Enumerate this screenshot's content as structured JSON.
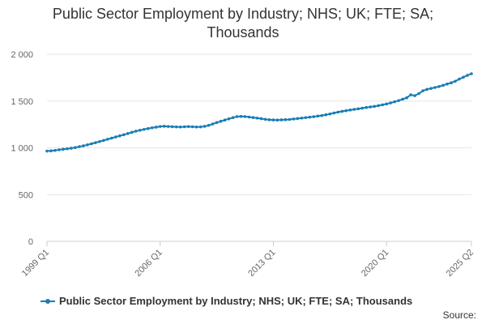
{
  "colors": {
    "series": "#1a7db4",
    "grid": "#e6e6e6",
    "axis": "#cccccc",
    "text": "#333333",
    "ticktext": "#666666"
  },
  "chart_data": {
    "type": "line",
    "title_lines": [
      "Public Sector Employment by Industry; NHS; UK; FTE; SA;",
      "Thousands"
    ],
    "ylim": [
      0,
      2000
    ],
    "yticks": [
      0,
      500,
      1000,
      1500,
      2000
    ],
    "ytick_labels": [
      "0",
      "500",
      "1 000",
      "1 500",
      "2 000"
    ],
    "xticks": [
      {
        "label": "1999 Q1",
        "index": 0
      },
      {
        "label": "2006 Q1",
        "index": 28
      },
      {
        "label": "2013 Q1",
        "index": 56
      },
      {
        "label": "2020 Q1",
        "index": 84
      },
      {
        "label": "2025 Q2",
        "index": 105
      }
    ],
    "grid": true,
    "legend_position": "bottom",
    "source_label": "Source:",
    "series": [
      {
        "name": "Public Sector Employment by Industry; NHS; UK; FTE; SA; Thousands",
        "values": [
          965,
          968,
          973,
          979,
          985,
          990,
          996,
          1003,
          1012,
          1021,
          1032,
          1043,
          1055,
          1067,
          1079,
          1092,
          1104,
          1116,
          1128,
          1140,
          1153,
          1166,
          1178,
          1188,
          1197,
          1206,
          1214,
          1221,
          1228,
          1231,
          1228,
          1226,
          1224,
          1223,
          1225,
          1227,
          1225,
          1223,
          1224,
          1230,
          1240,
          1255,
          1270,
          1284,
          1297,
          1310,
          1323,
          1334,
          1336,
          1334,
          1329,
          1324,
          1318,
          1312,
          1305,
          1300,
          1298,
          1297,
          1299,
          1301,
          1303,
          1308,
          1313,
          1318,
          1323,
          1328,
          1333,
          1339,
          1345,
          1353,
          1362,
          1372,
          1382,
          1390,
          1397,
          1404,
          1411,
          1417,
          1424,
          1431,
          1437,
          1443,
          1451,
          1460,
          1469,
          1480,
          1492,
          1505,
          1520,
          1535,
          1567,
          1557,
          1580,
          1610,
          1625,
          1635,
          1645,
          1655,
          1668,
          1682,
          1695,
          1712,
          1735,
          1755,
          1775,
          1792
        ]
      }
    ]
  }
}
